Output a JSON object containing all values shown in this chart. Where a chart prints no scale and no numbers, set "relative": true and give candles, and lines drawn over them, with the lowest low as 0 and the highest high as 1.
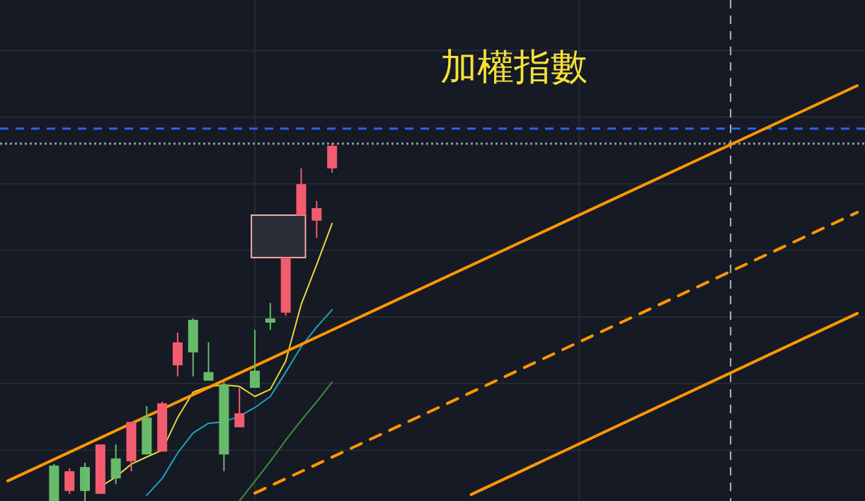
{
  "chart_data": {
    "type": "candlestick",
    "title": "加權指數",
    "relative": true,
    "grid": true,
    "categories": [
      null,
      null,
      null,
      null,
      null,
      null,
      null,
      null,
      null,
      null,
      null,
      null,
      null,
      null,
      null,
      null,
      null,
      null,
      null,
      null,
      null,
      null,
      null,
      null,
      null,
      null,
      null,
      null,
      null,
      null,
      null,
      null,
      null,
      null,
      null,
      null,
      null,
      null,
      null,
      null,
      null,
      null,
      null,
      null,
      null,
      null,
      null,
      null,
      null,
      null,
      null,
      null,
      null,
      null,
      null,
      null
    ],
    "ohlc": [
      null,
      null,
      null,
      [
        0,
        0.103,
        0,
        0.099
      ],
      [
        0.083,
        0.091,
        0.02,
        0.028
      ],
      [
        0.028,
        0.107,
        0,
        0.095
      ],
      [
        0.158,
        0.158,
        0.02,
        0.02
      ],
      [
        0.063,
        0.158,
        0.047,
        0.119
      ],
      [
        0.221,
        0.221,
        0.083,
        0.111
      ],
      [
        0.13,
        0.265,
        0.13,
        0.233
      ],
      [
        0.273,
        0.277,
        0.138,
        0.138
      ],
      [
        0.443,
        0.47,
        0.348,
        0.379
      ],
      [
        0.415,
        0.51,
        0.348,
        0.506
      ],
      [
        0.336,
        0.443,
        0.336,
        0.36
      ],
      [
        0.13,
        0.332,
        0.083,
        0.324
      ],
      [
        0.245,
        0.316,
        0.206,
        0.206
      ],
      [
        0.316,
        0.478,
        0.316,
        0.364
      ],
      [
        0.498,
        0.553,
        0.478,
        0.51
      ],
      [
        0.68,
        0.68,
        0.518,
        0.526
      ],
      [
        0.885,
        0.929,
        0.798,
        0.798
      ],
      [
        0.818,
        0.838,
        0.735,
        0.783
      ],
      [
        0.992,
        1,
        0.917,
        0.929
      ],
      null,
      null,
      null,
      null,
      null,
      null,
      null,
      null,
      null,
      null,
      null,
      null,
      null,
      null,
      null,
      null,
      null,
      null,
      null,
      null,
      null,
      null,
      null,
      null,
      null,
      null,
      null,
      null,
      null,
      null,
      null,
      null,
      null,
      null
    ],
    "colors": [
      null,
      null,
      null,
      "#66bb6a",
      "#f25c6e",
      "#66bb6a",
      "#f25c6e",
      "#66bb6a",
      "#f25c6e",
      "#66bb6a",
      "#f25c6e",
      "#f25c6e",
      "#66bb6a",
      "#66bb6a",
      "#66bb6a",
      "#f25c6e",
      "#66bb6a",
      "#66bb6a",
      "#f25c6e",
      "#f25c6e",
      "#f25c6e",
      "#f25c6e",
      null,
      null,
      null,
      null,
      null,
      null,
      null,
      null,
      null,
      null,
      null,
      null,
      null,
      null,
      null,
      null,
      null,
      null,
      null,
      null,
      null,
      null,
      null,
      null,
      null,
      null,
      null,
      null,
      null,
      null,
      null,
      null,
      null,
      null
    ],
    "series": [
      {
        "type": "line",
        "color": "#e8d83a",
        "values": [
          null,
          null,
          null,
          null,
          null,
          null,
          0.04,
          0.067,
          0.103,
          0.123,
          0.142,
          0.233,
          0.304,
          0.32,
          0.324,
          0.32,
          0.292,
          0.312,
          0.391,
          0.549,
          0.66,
          0.775,
          null,
          null,
          null,
          null,
          null,
          null,
          null,
          null,
          null,
          null,
          null,
          null,
          null,
          null,
          null,
          null,
          null,
          null,
          null,
          null,
          null,
          null,
          null,
          null,
          null,
          null,
          null,
          null,
          null,
          null,
          null,
          null,
          null,
          null
        ]
      },
      {
        "type": "line",
        "color": "#1fa3b8",
        "values": [
          null,
          null,
          null,
          null,
          null,
          null,
          null,
          null,
          null,
          0.016,
          0.063,
          0.134,
          0.19,
          0.217,
          0.221,
          0.237,
          0.261,
          0.292,
          0.36,
          0.431,
          0.486,
          0.534,
          null,
          null,
          null,
          null,
          null,
          null,
          null,
          null,
          null,
          null,
          null,
          null,
          null,
          null,
          null,
          null,
          null,
          null,
          null,
          null,
          null,
          null,
          null,
          null,
          null,
          null,
          null,
          null,
          null,
          null,
          null,
          null,
          null,
          null
        ]
      },
      {
        "type": "line",
        "color": "#3f8f3f",
        "values": [
          null,
          null,
          null,
          null,
          null,
          null,
          null,
          null,
          null,
          null,
          null,
          null,
          null,
          null,
          null,
          0,
          0.055,
          0.111,
          0.17,
          0.225,
          0.277,
          0.332,
          null,
          null,
          null,
          null,
          null,
          null,
          null,
          null,
          null,
          null,
          null,
          null,
          null,
          null,
          null,
          null,
          null,
          null,
          null,
          null,
          null,
          null,
          null,
          null,
          null,
          null,
          null,
          null,
          null,
          null,
          null,
          null,
          null,
          null
        ]
      },
      {
        "type": "line",
        "color": "#ff9800",
        "line_style": "solid",
        "values": [
          0.056,
          null,
          null,
          null,
          null,
          null,
          null,
          null,
          null,
          null,
          null,
          null,
          null,
          null,
          null,
          null,
          null,
          null,
          null,
          null,
          null,
          null,
          null,
          null,
          null,
          null,
          null,
          null,
          null,
          null,
          null,
          null,
          null,
          null,
          null,
          null,
          null,
          null,
          null,
          null,
          null,
          null,
          null,
          null,
          null,
          null,
          null,
          null,
          null,
          null,
          null,
          null,
          null,
          null,
          null,
          1.16
        ]
      },
      {
        "type": "line",
        "color": "#ff9800",
        "line_style": "dashed",
        "values": [
          null,
          null,
          null,
          null,
          null,
          null,
          null,
          null,
          null,
          null,
          null,
          null,
          null,
          null,
          null,
          null,
          0.022,
          null,
          null,
          null,
          null,
          null,
          null,
          null,
          null,
          null,
          null,
          null,
          null,
          null,
          null,
          null,
          null,
          null,
          null,
          null,
          null,
          null,
          null,
          null,
          null,
          null,
          null,
          null,
          null,
          null,
          null,
          null,
          null,
          null,
          null,
          null,
          null,
          null,
          null,
          0.806
        ]
      },
      {
        "type": "line",
        "color": "#ff9800",
        "line_style": "solid",
        "values": [
          null,
          null,
          null,
          null,
          null,
          null,
          null,
          null,
          null,
          null,
          null,
          null,
          null,
          null,
          null,
          null,
          null,
          null,
          null,
          null,
          null,
          null,
          null,
          null,
          null,
          null,
          null,
          null,
          null,
          null,
          0.018,
          null,
          null,
          null,
          null,
          null,
          null,
          null,
          null,
          null,
          null,
          null,
          null,
          null,
          null,
          null,
          null,
          null,
          null,
          null,
          null,
          null,
          null,
          null,
          null,
          0.524
        ]
      }
    ],
    "ref_lines": [
      {
        "axis": "y",
        "value": 1.04,
        "color": "#2962ff",
        "line_style": "dashed"
      },
      {
        "axis": "y",
        "value": 0.998,
        "color": "#9598a1",
        "line_style": "dotted"
      }
    ]
  }
}
